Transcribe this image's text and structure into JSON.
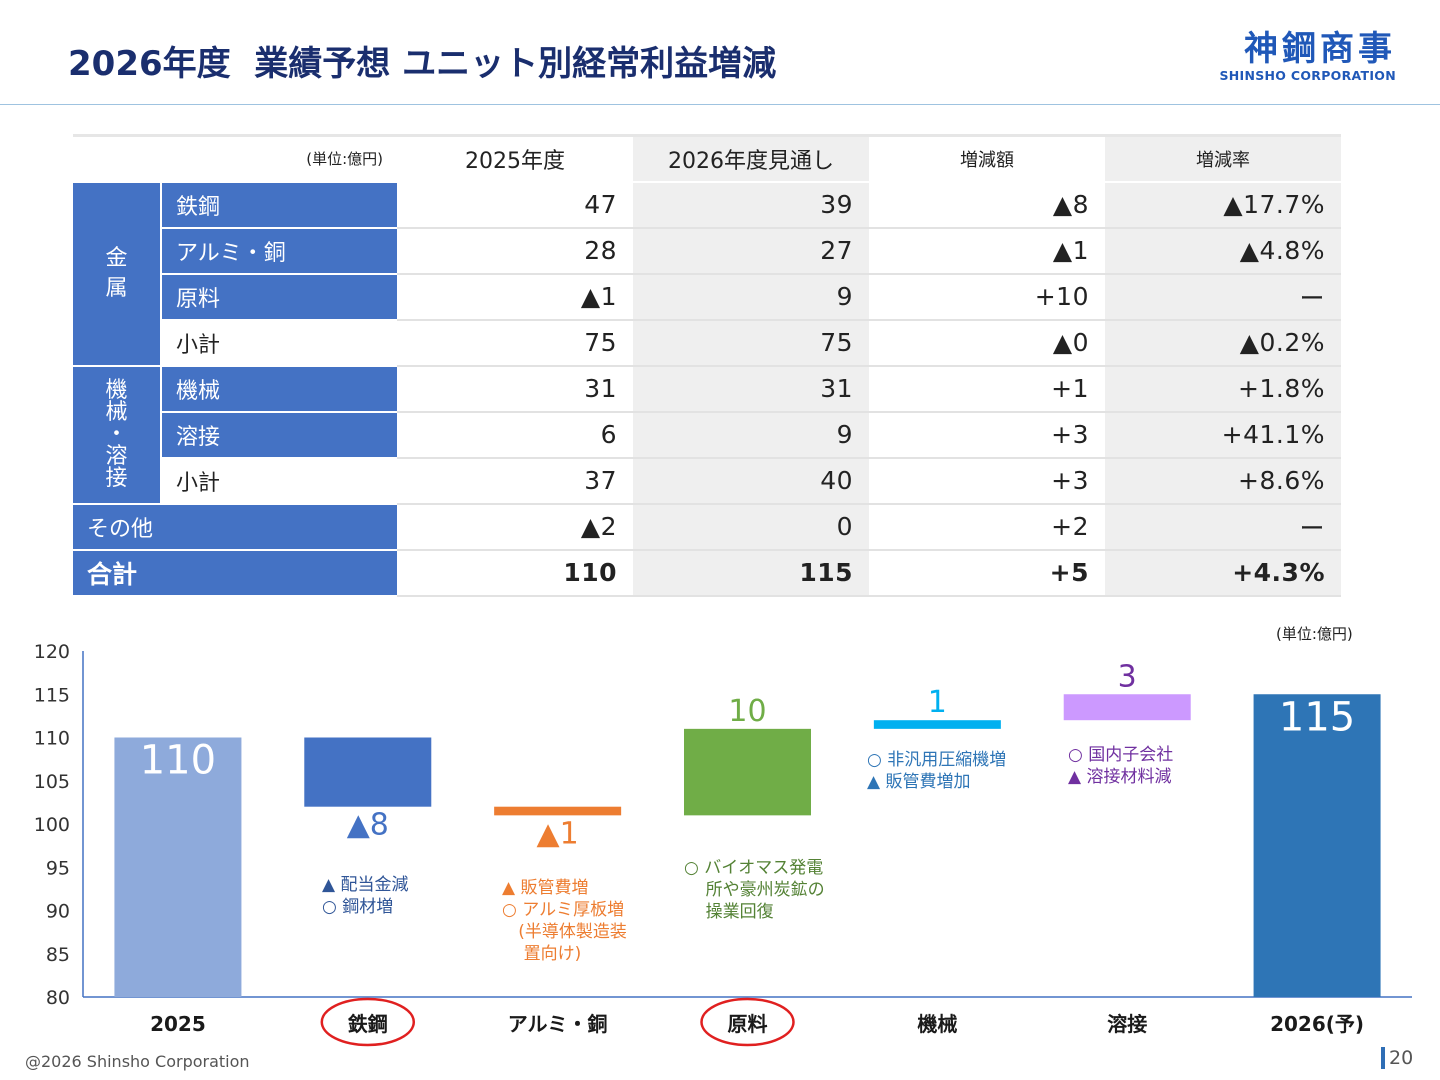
{
  "slide": {
    "title": "2026年度  業績予想 ユニット別経常利益増減",
    "logo_jp": "神鋼商事",
    "logo_en": "SHINSHO CORPORATION",
    "footer": "@2026 Shinsho Corporation",
    "page_number": "20"
  },
  "table": {
    "unit": "(単位:億円)",
    "headers": [
      "2025年度",
      "2026年度見通し",
      "増減額",
      "増減率"
    ],
    "group_metal": "金\n属",
    "group_machine": "機\n械\n・\n溶\n接",
    "rows": [
      {
        "label": "鉄鋼",
        "v2025": "47",
        "v2026": "39",
        "diff": "▲8",
        "rate": "▲17.7%"
      },
      {
        "label": "アルミ・銅",
        "v2025": "28",
        "v2026": "27",
        "diff": "▲1",
        "rate": "▲4.8%"
      },
      {
        "label": "原料",
        "v2025": "▲1",
        "v2026": "9",
        "diff": "+10",
        "rate": "ー"
      },
      {
        "label": "小計",
        "v2025": "75",
        "v2026": "75",
        "diff": "▲0",
        "rate": "▲0.2%"
      },
      {
        "label": "機械",
        "v2025": "31",
        "v2026": "31",
        "diff": "+1",
        "rate": "+1.8%"
      },
      {
        "label": "溶接",
        "v2025": "6",
        "v2026": "9",
        "diff": "+3",
        "rate": "+41.1%"
      },
      {
        "label": "小計",
        "v2025": "37",
        "v2026": "40",
        "diff": "+3",
        "rate": "+8.6%"
      },
      {
        "label": "その他",
        "v2025": "▲2",
        "v2026": "0",
        "diff": "+2",
        "rate": "ー"
      },
      {
        "label": "合計",
        "v2025": "110",
        "v2026": "115",
        "diff": "+5",
        "rate": "+4.3%"
      }
    ]
  },
  "chart_data": {
    "type": "bar",
    "subtype": "waterfall",
    "unit_label": "(単位:億円)",
    "ylim": [
      80,
      120
    ],
    "yticks": [
      "80",
      "85",
      "90",
      "95",
      "100",
      "105",
      "110",
      "115",
      "120"
    ],
    "categories": [
      "2025",
      "鉄鋼",
      "アルミ・銅",
      "原料",
      "機械",
      "溶接",
      "2026(予)"
    ],
    "circled_categories": [
      "鉄鋼",
      "原料"
    ],
    "bars": [
      {
        "category": "2025",
        "start": 80,
        "end": 110,
        "label": "110",
        "color": "#8eaadb",
        "label_color": "#ffffff",
        "label_pos": "inside"
      },
      {
        "category": "鉄鋼",
        "start": 110,
        "end": 102,
        "label": "▲8",
        "color": "#4472c4",
        "label_color": "#4472c4",
        "label_pos": "below"
      },
      {
        "category": "アルミ・銅",
        "start": 102,
        "end": 101,
        "label": "▲1",
        "color": "#ed7d31",
        "label_color": "#ed7d31",
        "label_pos": "below"
      },
      {
        "category": "原料",
        "start": 101,
        "end": 111,
        "label": "10",
        "color": "#70ad47",
        "label_color": "#70ad47",
        "label_pos": "above"
      },
      {
        "category": "機械",
        "start": 111,
        "end": 112,
        "label": "1",
        "color": "#00b0f0",
        "label_color": "#00b0f0",
        "label_pos": "above"
      },
      {
        "category": "溶接",
        "start": 112,
        "end": 115,
        "label": "3",
        "color": "#cc99ff",
        "label_color": "#7030a0",
        "label_pos": "above"
      },
      {
        "category": "2026(予)",
        "start": 80,
        "end": 115,
        "label": "115",
        "color": "#2e75b6",
        "label_color": "#ffffff",
        "label_pos": "inside"
      }
    ],
    "annotations": [
      {
        "category": "鉄鋼",
        "color": "#2f5597",
        "lines": [
          "▲ 配当金減",
          "○ 鋼材増"
        ]
      },
      {
        "category": "アルミ・銅",
        "color": "#ed7d31",
        "lines": [
          "▲ 販管費増",
          "○ アルミ厚板増",
          "   (半導体製造装",
          "    置向け)"
        ]
      },
      {
        "category": "原料",
        "color": "#548235",
        "lines": [
          "○ バイオマス発電",
          "    所や豪州炭鉱の",
          "    操業回復"
        ]
      },
      {
        "category": "機械",
        "color": "#2e75b6",
        "lines": [
          "○ 非汎用圧縮機増",
          "▲ 販管費増加"
        ]
      },
      {
        "category": "溶接",
        "color": "#7030a0",
        "lines": [
          "○ 国内子会社",
          "▲ 溶接材料減"
        ]
      }
    ]
  }
}
